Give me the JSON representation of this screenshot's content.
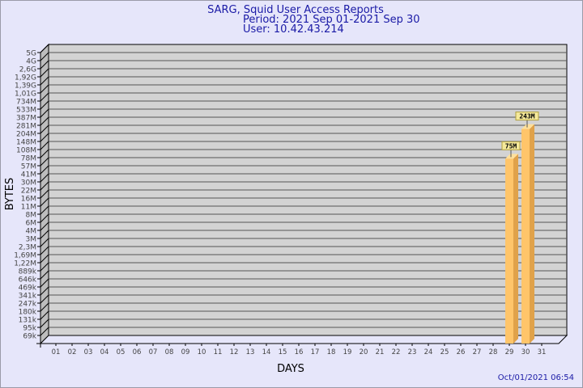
{
  "chart_data": {
    "type": "bar",
    "title": "SARG, Squid User Access Reports",
    "subtitle_lines": [
      "Period: 2021 Sep 01-2021 Sep 30",
      "User: 10.42.43.214"
    ],
    "xlabel": "DAYS",
    "ylabel": "BYTES",
    "yscale": "log",
    "grid": true,
    "y_tick_labels": [
      "5G",
      "4G",
      "2,6G",
      "1,92G",
      "1,39G",
      "1,01G",
      "734M",
      "533M",
      "387M",
      "281M",
      "204M",
      "148M",
      "108M",
      "78M",
      "57M",
      "41M",
      "30M",
      "22M",
      "16M",
      "11M",
      "8M",
      "6M",
      "4M",
      "3M",
      "2,3M",
      "1,69M",
      "1,22M",
      "889k",
      "646k",
      "469k",
      "341k",
      "247k",
      "180k",
      "131k",
      "95k",
      "69k"
    ],
    "ylim": [
      69000,
      5000000000
    ],
    "categories": [
      "01",
      "02",
      "03",
      "04",
      "05",
      "06",
      "07",
      "08",
      "09",
      "10",
      "11",
      "12",
      "13",
      "14",
      "15",
      "16",
      "17",
      "18",
      "19",
      "20",
      "21",
      "22",
      "23",
      "24",
      "25",
      "26",
      "27",
      "28",
      "29",
      "30",
      "31"
    ],
    "bars": [
      {
        "day": "29",
        "value": 75000000,
        "label": "75M"
      },
      {
        "day": "30",
        "value": 243000000,
        "label": "243M"
      }
    ],
    "timestamp": "Oct/01/2021 06:54",
    "colors": {
      "title": "#1a1aa6",
      "bar": "#ffc56a",
      "bar_side": "#e0a24a",
      "bar_top": "#ffe09a",
      "plot_bg": "#d3d3d3",
      "label_box": "#f5e99a"
    }
  }
}
